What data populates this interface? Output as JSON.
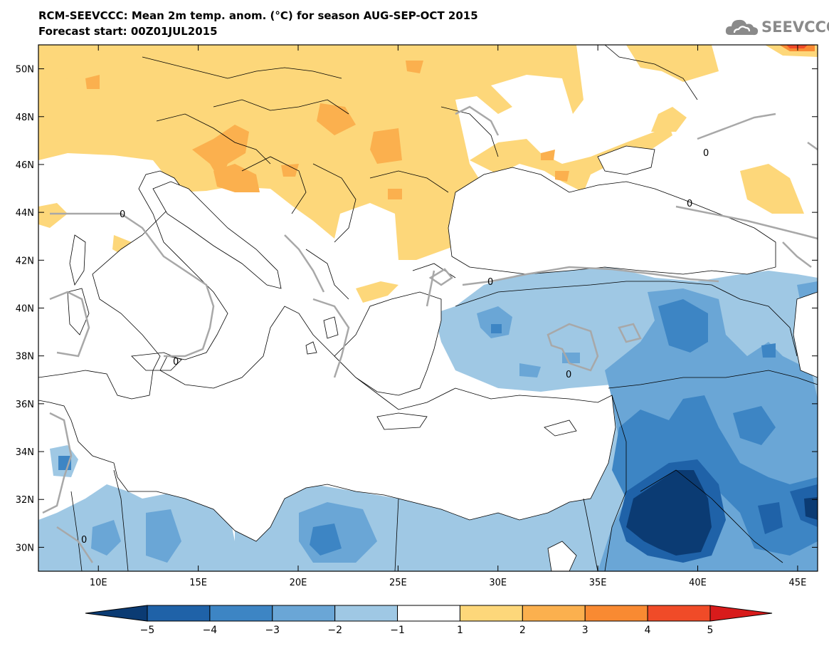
{
  "header": {
    "title_line1": "RCM-SEEVCCC: Mean 2m temp. anom. (°C) for season AUG-SEP-OCT 2015",
    "title_line2": "Forecast start: 00Z01JUL2015",
    "logo_text": "SEEVCCC",
    "logo_icon": "cloud-icon"
  },
  "map": {
    "lon_range": [
      7,
      46
    ],
    "lat_range": [
      29,
      51
    ],
    "lat_ticks": [
      {
        "value": 50,
        "label": "50N"
      },
      {
        "value": 48,
        "label": "48N"
      },
      {
        "value": 46,
        "label": "46N"
      },
      {
        "value": 44,
        "label": "44N"
      },
      {
        "value": 42,
        "label": "42N"
      },
      {
        "value": 40,
        "label": "40N"
      },
      {
        "value": 38,
        "label": "38N"
      },
      {
        "value": 36,
        "label": "36N"
      },
      {
        "value": 34,
        "label": "34N"
      },
      {
        "value": 32,
        "label": "32N"
      },
      {
        "value": 30,
        "label": "30N"
      }
    ],
    "lon_ticks": [
      {
        "value": 10,
        "label": "10E"
      },
      {
        "value": 15,
        "label": "15E"
      },
      {
        "value": 20,
        "label": "20E"
      },
      {
        "value": 25,
        "label": "25E"
      },
      {
        "value": 30,
        "label": "30E"
      },
      {
        "value": 35,
        "label": "35E"
      },
      {
        "value": 40,
        "label": "40E"
      },
      {
        "value": 45,
        "label": "45E"
      }
    ],
    "contour_label": "0"
  },
  "colorbar": {
    "colors": [
      "#0b3b73",
      "#1f62a8",
      "#3d85c4",
      "#6aa6d6",
      "#9fc8e4",
      "#ffffff",
      "#fdd77a",
      "#fbb04e",
      "#f98a32",
      "#f04b28",
      "#d81b1b"
    ],
    "labels": [
      "-5",
      "-4",
      "-3",
      "-2",
      "-1",
      "1",
      "2",
      "3",
      "4",
      "5"
    ]
  }
}
